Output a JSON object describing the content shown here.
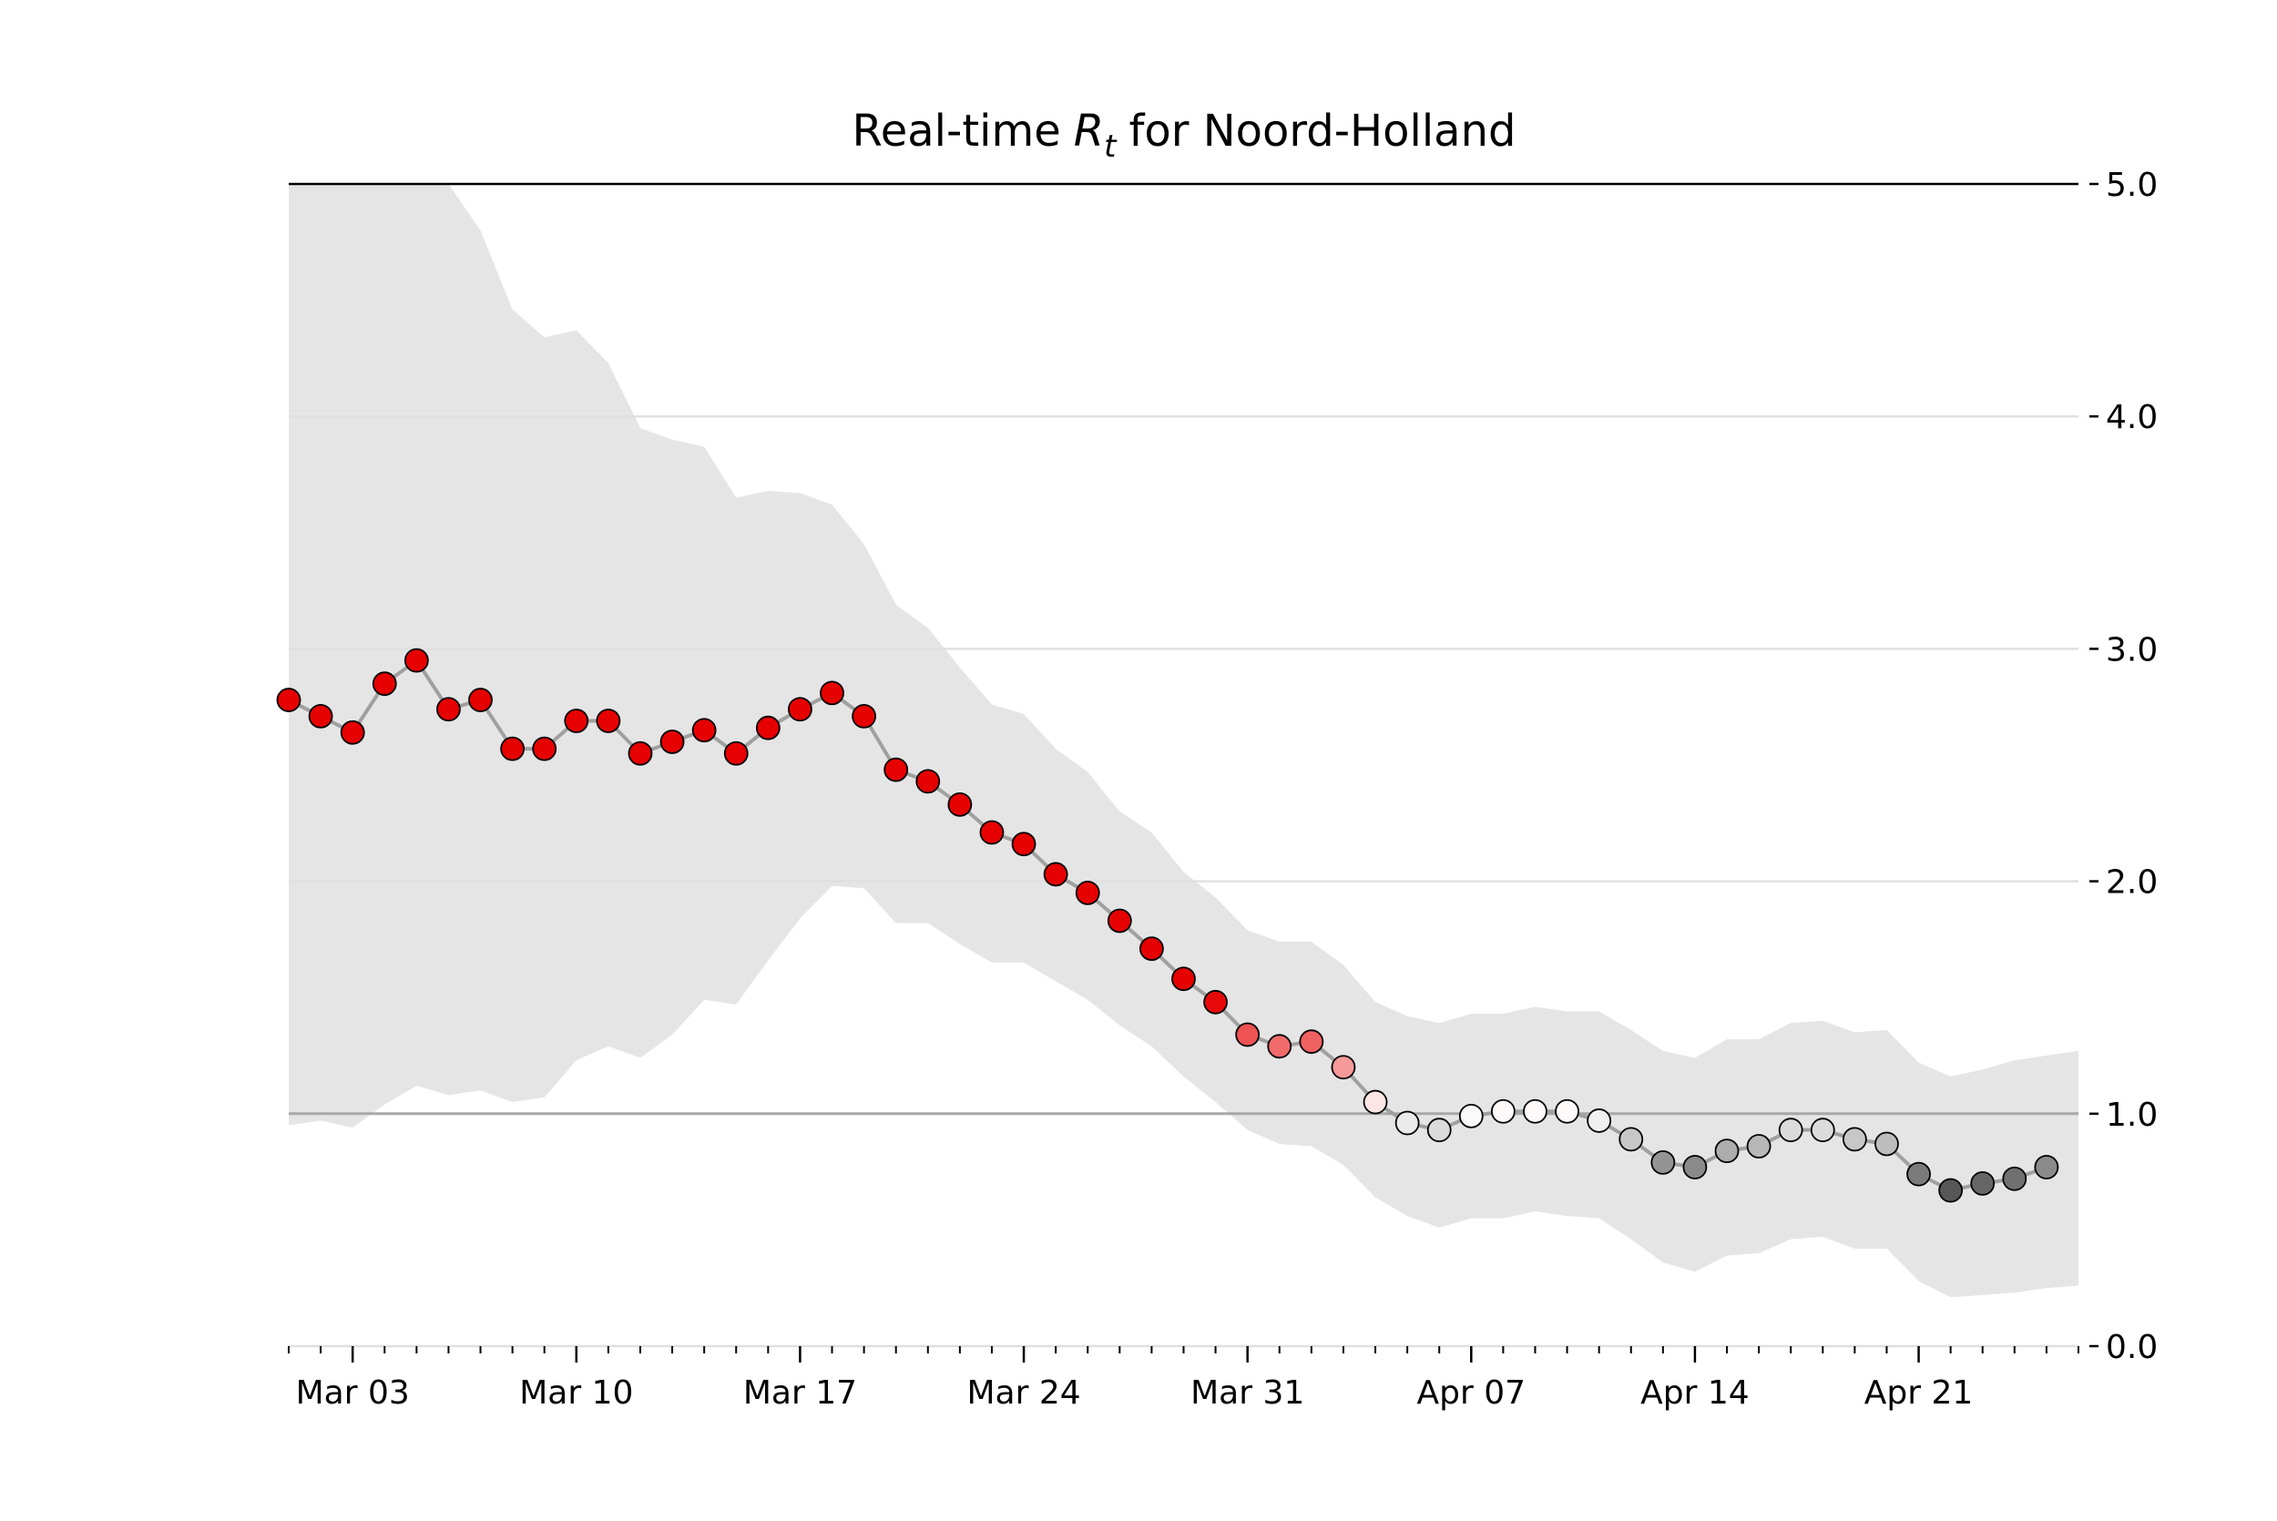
{
  "chart_data": {
    "type": "line",
    "title_prefix": "Real-time",
    "title_symbol": "R",
    "title_subscript": "t",
    "title_suffix": "for Noord-Holland",
    "x": [
      "Mar 01",
      "Mar 02",
      "Mar 03",
      "Mar 04",
      "Mar 05",
      "Mar 06",
      "Mar 07",
      "Mar 08",
      "Mar 09",
      "Mar 10",
      "Mar 11",
      "Mar 12",
      "Mar 13",
      "Mar 14",
      "Mar 15",
      "Mar 16",
      "Mar 17",
      "Mar 18",
      "Mar 19",
      "Mar 20",
      "Mar 21",
      "Mar 22",
      "Mar 23",
      "Mar 24",
      "Mar 25",
      "Mar 26",
      "Mar 27",
      "Mar 28",
      "Mar 29",
      "Mar 30",
      "Mar 31",
      "Apr 01",
      "Apr 02",
      "Apr 03",
      "Apr 04",
      "Apr 05",
      "Apr 06",
      "Apr 07",
      "Apr 08",
      "Apr 09",
      "Apr 10",
      "Apr 11",
      "Apr 12",
      "Apr 13",
      "Apr 14",
      "Apr 15",
      "Apr 16",
      "Apr 17",
      "Apr 18",
      "Apr 19",
      "Apr 20",
      "Apr 21",
      "Apr 22",
      "Apr 23",
      "Apr 24",
      "Apr 25",
      "Apr 26"
    ],
    "values": [
      2.78,
      2.71,
      2.64,
      2.85,
      2.95,
      2.74,
      2.78,
      2.57,
      2.57,
      2.69,
      2.69,
      2.55,
      2.6,
      2.65,
      2.55,
      2.66,
      2.74,
      2.81,
      2.71,
      2.48,
      2.43,
      2.33,
      2.21,
      2.16,
      2.03,
      1.95,
      1.83,
      1.71,
      1.58,
      1.48,
      1.34,
      1.29,
      1.31,
      1.2,
      1.05,
      0.96,
      0.93,
      0.99,
      1.01,
      1.01,
      1.01,
      0.97,
      0.89,
      0.79,
      0.77,
      0.84,
      0.86,
      0.93,
      0.93,
      0.89,
      0.87,
      0.74,
      0.67,
      0.7,
      0.72,
      0.77,
      null
    ],
    "color": "#a0a0a0",
    "band": {
      "upper": [
        5.8,
        5.7,
        5.6,
        5.4,
        5.2,
        5.0,
        4.8,
        4.46,
        4.34,
        4.37,
        4.23,
        3.95,
        3.9,
        3.87,
        3.65,
        3.68,
        3.67,
        3.62,
        3.45,
        3.19,
        3.09,
        2.92,
        2.76,
        2.72,
        2.57,
        2.47,
        2.3,
        2.21,
        2.04,
        1.93,
        1.79,
        1.74,
        1.74,
        1.64,
        1.48,
        1.42,
        1.39,
        1.43,
        1.43,
        1.46,
        1.44,
        1.44,
        1.36,
        1.27,
        1.24,
        1.32,
        1.32,
        1.39,
        1.4,
        1.35,
        1.36,
        1.22,
        1.16,
        1.19,
        1.23,
        1.25,
        1.27
      ],
      "lower": [
        0.95,
        0.97,
        0.94,
        1.04,
        1.12,
        1.08,
        1.1,
        1.05,
        1.07,
        1.23,
        1.29,
        1.24,
        1.34,
        1.49,
        1.47,
        1.66,
        1.84,
        1.98,
        1.97,
        1.82,
        1.82,
        1.73,
        1.65,
        1.65,
        1.57,
        1.49,
        1.38,
        1.29,
        1.16,
        1.05,
        0.93,
        0.87,
        0.86,
        0.78,
        0.64,
        0.56,
        0.51,
        0.55,
        0.55,
        0.58,
        0.56,
        0.55,
        0.46,
        0.36,
        0.32,
        0.39,
        0.4,
        0.46,
        0.47,
        0.42,
        0.42,
        0.28,
        0.21,
        0.22,
        0.23,
        0.25,
        0.26
      ],
      "color": "#e5e5e5"
    },
    "marker_colors": {
      "domain": [
        0.5,
        1,
        1.5
      ],
      "colors": [
        "#000000",
        "#ffffff",
        "#e60000"
      ]
    },
    "xlim": [
      "Mar 01",
      "Apr 26"
    ],
    "xticks": [
      "Mar 03",
      "Mar 10",
      "Mar 17",
      "Mar 24",
      "Mar 31",
      "Apr 07",
      "Apr 14",
      "Apr 21"
    ],
    "ylim": [
      0,
      5
    ],
    "yticks": [
      {
        "value": 0,
        "label": "0.0"
      },
      {
        "value": 1,
        "label": "1.0"
      },
      {
        "value": 2,
        "label": "2.0"
      },
      {
        "value": 3,
        "label": "3.0"
      },
      {
        "value": 4,
        "label": "4.0"
      },
      {
        "value": 5,
        "label": "5.0"
      }
    ],
    "grid": true,
    "reference_line": 1
  }
}
